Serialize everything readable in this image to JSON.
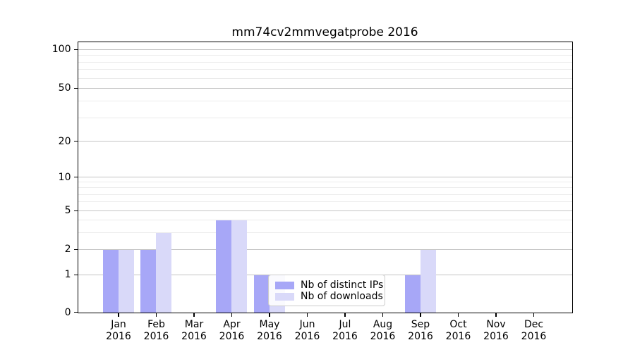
{
  "title": "mm74cv2mmvegatprobe 2016",
  "chart_data": {
    "type": "bar",
    "title": "mm74cv2mmvegatprobe 2016",
    "categories": [
      "Jan 2016",
      "Feb 2016",
      "Mar 2016",
      "Apr 2016",
      "May 2016",
      "Jun 2016",
      "Jul 2016",
      "Aug 2016",
      "Sep 2016",
      "Oct 2016",
      "Nov 2016",
      "Dec 2016"
    ],
    "series": [
      {
        "name": "Nb of distinct IPs",
        "color": "#a7a7f7",
        "values": [
          2,
          2,
          0,
          4,
          1,
          0,
          0,
          0,
          1,
          0,
          0,
          0
        ]
      },
      {
        "name": "Nb of downloads",
        "color": "#d9d9f9",
        "values": [
          2,
          3,
          0,
          4,
          1,
          0,
          0,
          0,
          2,
          0,
          0,
          0
        ]
      }
    ],
    "xlabel": "",
    "ylabel": "",
    "yscale": "symlog",
    "yticks": [
      0,
      1,
      2,
      5,
      10,
      20,
      50,
      100
    ],
    "minor_yticks": [
      3,
      4,
      6,
      7,
      8,
      9,
      30,
      40,
      60,
      70,
      80,
      90
    ],
    "ylim": [
      0,
      115
    ],
    "grid": "horizontal, major and minor",
    "legend_position": "inside lower-center"
  },
  "legend": {
    "items": [
      {
        "label": "Nb of distinct IPs",
        "color": "#a7a7f7"
      },
      {
        "label": "Nb of downloads",
        "color": "#d9d9f9"
      }
    ]
  }
}
